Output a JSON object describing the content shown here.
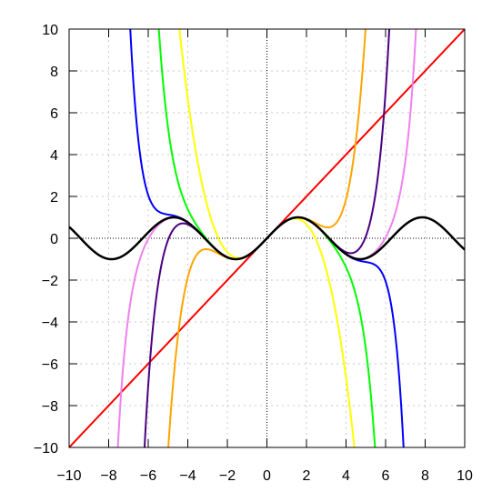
{
  "chart_data": {
    "type": "line",
    "title": "",
    "xlabel": "",
    "ylabel": "",
    "xlim": [
      -10,
      10
    ],
    "ylim": [
      -10,
      10
    ],
    "x_ticks": [
      -10,
      -8,
      -6,
      -4,
      -2,
      0,
      2,
      4,
      6,
      8,
      10
    ],
    "y_ticks": [
      -10,
      -8,
      -6,
      -4,
      -2,
      0,
      2,
      4,
      6,
      8,
      10
    ],
    "x_tick_labels": [
      "−10",
      "−8",
      "−6",
      "−4",
      "−2",
      "0",
      "2",
      "4",
      "6",
      "8",
      "10"
    ],
    "y_tick_labels": [
      "−10",
      "−8",
      "−6",
      "−4",
      "−2",
      "0",
      "2",
      "4",
      "6",
      "8",
      "10"
    ],
    "grid": true,
    "legend": "none",
    "series": [
      {
        "expression": "sin(x)",
        "color": "#000000"
      },
      {
        "expression": "x",
        "color": "#ff0000"
      },
      {
        "expression": "x - x^3/6",
        "color": "#ffff00"
      },
      {
        "expression": "x - x^3/6 + x^5/120",
        "color": "#ffa500"
      },
      {
        "expression": "x - x^3/6 + x^5/120 - x^7/5040",
        "color": "#00ff00"
      },
      {
        "expression": "x - x^3/6 + x^5/120 - x^7/5040 + x^9/362880",
        "color": "#4b0082"
      },
      {
        "expression": "x - x^3/6 + x^5/120 - x^7/5040 + x^9/362880 - x^11/39916800",
        "color": "#0000ff"
      },
      {
        "expression": "x - x^3/6 + x^5/120 - x^7/5040 + x^9/362880 - x^11/39916800 + x^13/6227020800",
        "color": "#ee82ee"
      }
    ]
  }
}
